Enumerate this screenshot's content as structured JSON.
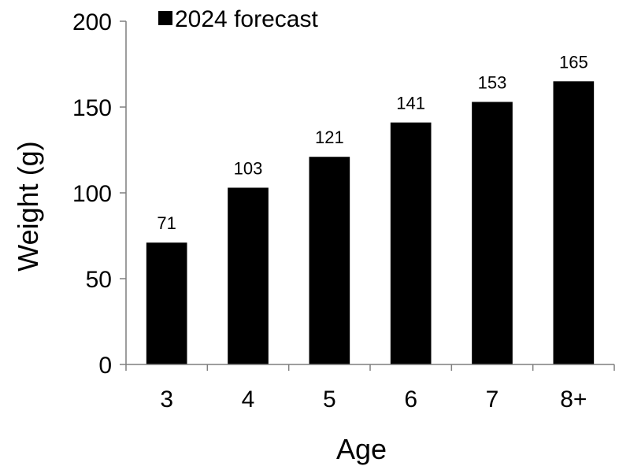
{
  "chart_data": {
    "type": "bar",
    "categories": [
      "3",
      "4",
      "5",
      "6",
      "7",
      "8+"
    ],
    "series": [
      {
        "name": "2024 forecast",
        "values": [
          71,
          103,
          121,
          141,
          153,
          165
        ],
        "color": "#000000"
      }
    ],
    "data_labels": [
      "71",
      "103",
      "121",
      "141",
      "153",
      "165"
    ],
    "xlabel": "Age",
    "ylabel": "Weight (g)",
    "ylim": [
      0,
      200
    ],
    "yticks": [
      0,
      50,
      100,
      150,
      200
    ],
    "ytick_labels": [
      "0",
      "50",
      "100",
      "150",
      "200"
    ],
    "grid": false,
    "legend": {
      "position": "top-left",
      "label": "2024 forecast"
    },
    "axis_color": "#7f7f7f"
  }
}
